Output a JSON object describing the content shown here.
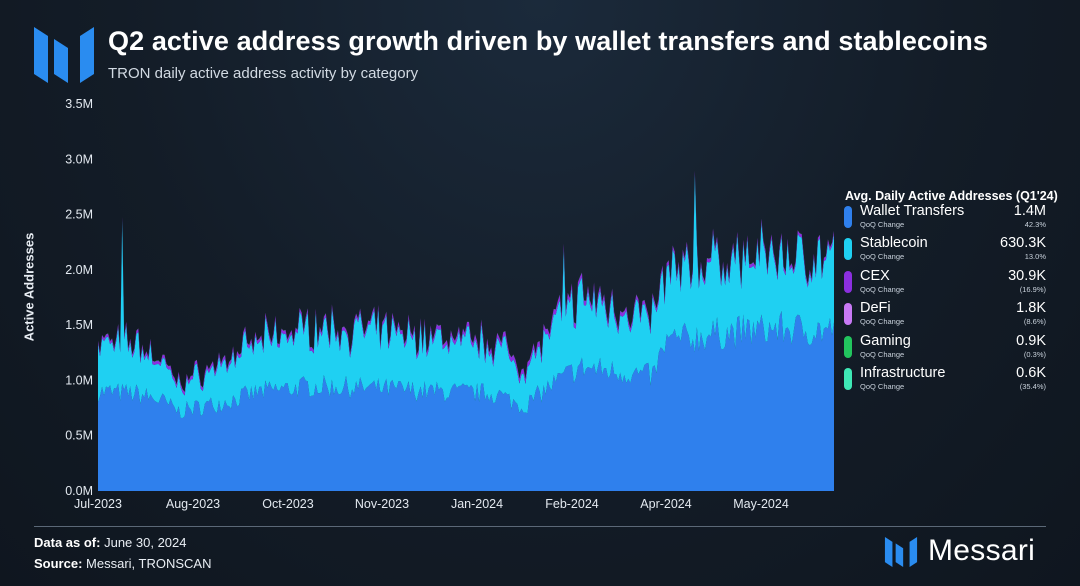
{
  "header": {
    "title": "Q2 active address growth driven by wallet transfers and stablecoins",
    "subtitle": "TRON daily active address activity by category"
  },
  "chart_data": {
    "type": "area",
    "stacked": true,
    "ylabel": "Active Addresses",
    "ylim": [
      0,
      3500000
    ],
    "y_ticks": [
      "0.0M",
      "0.5M",
      "1.0M",
      "1.5M",
      "2.0M",
      "2.5M",
      "3.0M",
      "3.5M"
    ],
    "x_ticks": [
      "Jul-2023",
      "Aug-2023",
      "Oct-2023",
      "Nov-2023",
      "Jan-2024",
      "Feb-2024",
      "Apr-2024",
      "May-2024"
    ],
    "x_range": [
      "2023-07-01",
      "2024-06-30"
    ],
    "grid": "none",
    "legend_position": "right",
    "series_keypoints_note_free": true,
    "series": [
      {
        "name": "Wallet Transfers",
        "color": "#2f80ed",
        "keypoints": [
          [
            "2023-07-01",
            900000
          ],
          [
            "2023-07-20",
            880000
          ],
          [
            "2023-08-01",
            820000
          ],
          [
            "2023-08-10",
            720000
          ],
          [
            "2023-08-31",
            800000
          ],
          [
            "2023-09-20",
            900000
          ],
          [
            "2023-10-15",
            950000
          ],
          [
            "2023-11-15",
            930000
          ],
          [
            "2023-12-15",
            900000
          ],
          [
            "2024-01-15",
            880000
          ],
          [
            "2024-01-28",
            760000
          ],
          [
            "2024-02-10",
            950000
          ],
          [
            "2024-02-25",
            1120000
          ],
          [
            "2024-03-15",
            1080000
          ],
          [
            "2024-04-01",
            1040000
          ],
          [
            "2024-04-08",
            1350000
          ],
          [
            "2024-05-01",
            1420000
          ],
          [
            "2024-06-01",
            1470000
          ],
          [
            "2024-06-30",
            1450000
          ]
        ]
      },
      {
        "name": "Stablecoin",
        "color": "#1fd0f2",
        "keypoints": [
          [
            "2023-07-01",
            430000
          ],
          [
            "2023-07-20",
            440000
          ],
          [
            "2023-08-01",
            340000
          ],
          [
            "2023-08-10",
            230000
          ],
          [
            "2023-08-31",
            330000
          ],
          [
            "2023-09-20",
            450000
          ],
          [
            "2023-10-15",
            520000
          ],
          [
            "2023-11-15",
            500000
          ],
          [
            "2023-12-15",
            470000
          ],
          [
            "2024-01-15",
            440000
          ],
          [
            "2024-01-28",
            330000
          ],
          [
            "2024-02-10",
            480000
          ],
          [
            "2024-02-25",
            620000
          ],
          [
            "2024-03-15",
            560000
          ],
          [
            "2024-04-01",
            520000
          ],
          [
            "2024-04-08",
            600000
          ],
          [
            "2024-05-01",
            640000
          ],
          [
            "2024-06-01",
            660000
          ],
          [
            "2024-06-30",
            640000
          ]
        ]
      },
      {
        "name": "CEX",
        "color": "#8b2fe0",
        "keypoints": [
          [
            "2023-07-01",
            25000
          ],
          [
            "2023-08-15",
            30000
          ],
          [
            "2023-11-15",
            30000
          ],
          [
            "2024-02-15",
            45000
          ],
          [
            "2024-04-01",
            32000
          ],
          [
            "2024-06-30",
            28000
          ]
        ]
      },
      {
        "name": "DeFi",
        "color": "#c879f5",
        "keypoints": [
          [
            "2023-07-01",
            2000
          ],
          [
            "2024-06-30",
            1800
          ]
        ]
      },
      {
        "name": "Gaming",
        "color": "#22c55e",
        "keypoints": [
          [
            "2023-07-01",
            900
          ],
          [
            "2024-06-30",
            900
          ]
        ]
      },
      {
        "name": "Infrastructure",
        "color": "#3ee8b5",
        "keypoints": [
          [
            "2023-07-01",
            600
          ],
          [
            "2024-06-30",
            600
          ]
        ]
      }
    ],
    "spikes": [
      {
        "date": "2023-07-13",
        "total": 2480000
      },
      {
        "date": "2024-02-17",
        "total": 2240000
      },
      {
        "date": "2024-04-22",
        "total": 2900000
      }
    ]
  },
  "legend": {
    "title": "Avg. Daily Active Addresses (Q1'24)",
    "change_label": "QoQ Change",
    "items": [
      {
        "name": "Wallet Transfers",
        "value": "1.4M",
        "change": "42.3%",
        "color": "#2f80ed"
      },
      {
        "name": "Stablecoin",
        "value": "630.3K",
        "change": "13.0%",
        "color": "#1fd0f2"
      },
      {
        "name": "CEX",
        "value": "30.9K",
        "change": "(16.9%)",
        "color": "#8b2fe0"
      },
      {
        "name": "DeFi",
        "value": "1.8K",
        "change": "(8.6%)",
        "color": "#c879f5"
      },
      {
        "name": "Gaming",
        "value": "0.9K",
        "change": "(0.3%)",
        "color": "#22c55e"
      },
      {
        "name": "Infrastructure",
        "value": "0.6K",
        "change": "(35.4%)",
        "color": "#3ee8b5"
      }
    ]
  },
  "footer": {
    "data_as_of_label": "Data as of:",
    "data_as_of_value": "June 30, 2024",
    "source_label": "Source:",
    "source_value": "Messari, TRONSCAN",
    "brand": "Messari"
  }
}
